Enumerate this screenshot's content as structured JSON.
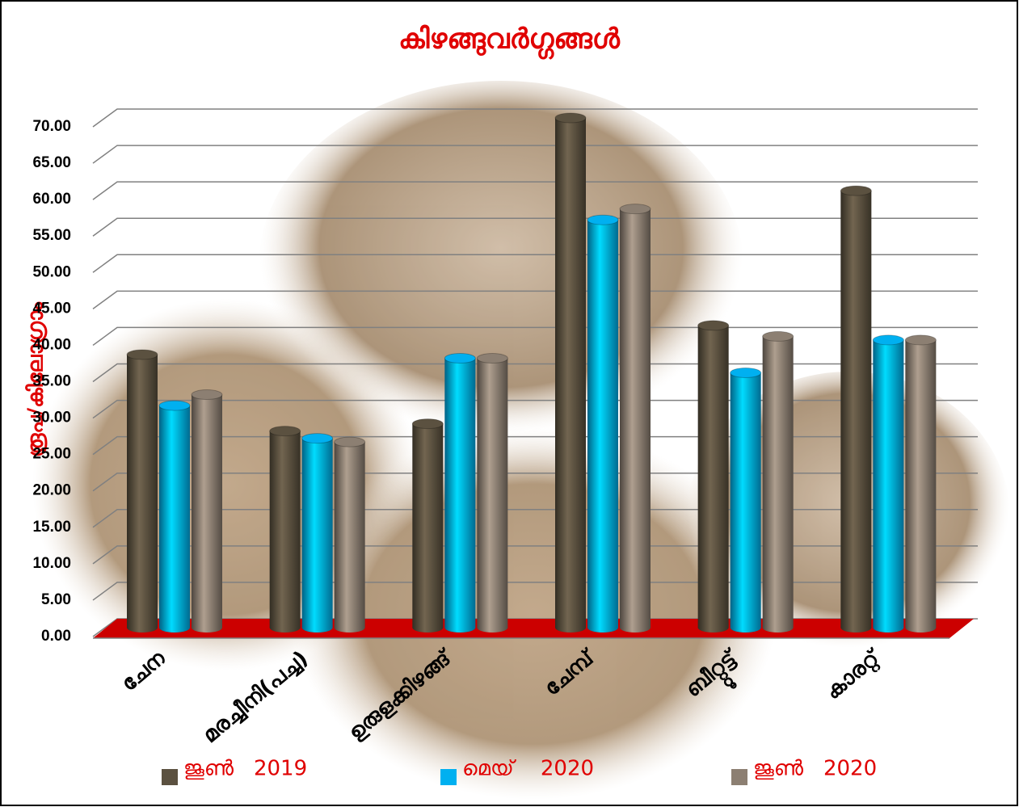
{
  "chart_data": {
    "type": "bar3d",
    "title": "കിഴങ്ങുവർഗ്ഗങ്ങൾ",
    "y_label": "രൂപ/കിലോഗ്രാം",
    "categories": [
      "ചേന",
      "മരച്ചീനി(പച്ച)",
      "ഉരുളക്കിഴങ്ങ്",
      "ചേമ്പ്",
      "ബീറ്റ്റൂട്ട്",
      "കാരറ്റ്"
    ],
    "series": [
      {
        "name": "ജൂൺ   2019",
        "color": "#5b5140",
        "values": [
          37.5,
          27,
          28,
          70,
          41.5,
          60
        ]
      },
      {
        "name": "മെയ്    2020",
        "color": "#00b0f0",
        "values": [
          30.5,
          26,
          37,
          56,
          35,
          39.5
        ]
      },
      {
        "name": "ജൂൺ   2020",
        "color": "#8c7f72",
        "values": [
          32,
          25.5,
          37,
          57.5,
          40,
          39.5
        ]
      }
    ],
    "ylim": [
      0,
      70
    ],
    "yticks": [
      {
        "value": 0,
        "label": "0.00"
      },
      {
        "value": 5,
        "label": "5.00"
      },
      {
        "value": 10,
        "label": "10.00"
      },
      {
        "value": 15,
        "label": "15.00"
      },
      {
        "value": 20,
        "label": "20.00"
      },
      {
        "value": 25,
        "label": "25.00"
      },
      {
        "value": 30,
        "label": "30.00"
      },
      {
        "value": 35,
        "label": "35.00"
      },
      {
        "value": 40,
        "label": "40.00"
      },
      {
        "value": 45,
        "label": "45.00"
      },
      {
        "value": 50,
        "label": "50.00"
      },
      {
        "value": 55,
        "label": "55.00"
      },
      {
        "value": 60,
        "label": "60.00"
      },
      {
        "value": 65,
        "label": "65.00"
      },
      {
        "value": 70,
        "label": "70.00"
      }
    ],
    "grid": true,
    "floor_color": "#cc0000"
  }
}
